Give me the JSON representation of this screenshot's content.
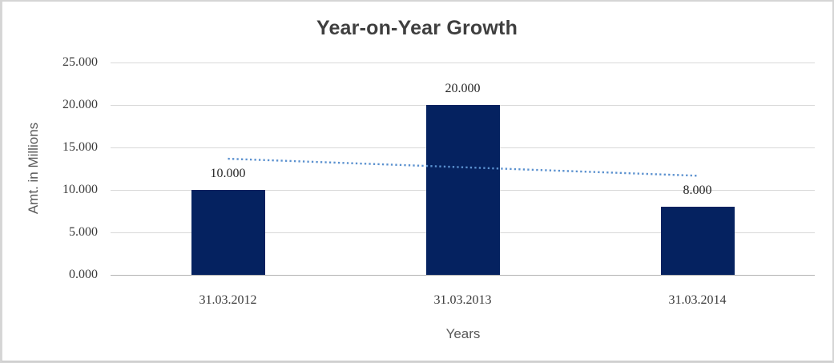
{
  "window": {
    "background": "#ffffff",
    "frame_border_color": "#d5d5d5"
  },
  "chart_data": {
    "type": "bar",
    "title": "Year-on-Year Growth",
    "categories": [
      "31.03.2012",
      "31.03.2013",
      "31.03.2014"
    ],
    "values": [
      10.0,
      20.0,
      8.0
    ],
    "value_labels": [
      "10.000",
      "20.000",
      "8.000"
    ],
    "xlabel": "Years",
    "ylabel": "Amt. in Millions",
    "ylim": [
      0,
      25
    ],
    "yticks": [
      0,
      5,
      10,
      15,
      20,
      25
    ],
    "ytick_labels": [
      "0.000",
      "5.000",
      "10.000",
      "15.000",
      "20.000",
      "25.000"
    ],
    "grid": "horizontal",
    "legend": "none",
    "trendline": {
      "type": "linear",
      "style": "dotted",
      "fitted_values": [
        13.667,
        12.667,
        11.667
      ],
      "color": "#5b91cf"
    },
    "colors": {
      "bar": "#052260",
      "gridline": "#d9d9d9",
      "axis_line": "#b3b3b3",
      "title_text": "#3f3f3f",
      "tick_text": "#3a3a3a",
      "value_label_text": "#262626",
      "axis_title_text": "#595959",
      "trendline": "#5b91cf"
    }
  }
}
